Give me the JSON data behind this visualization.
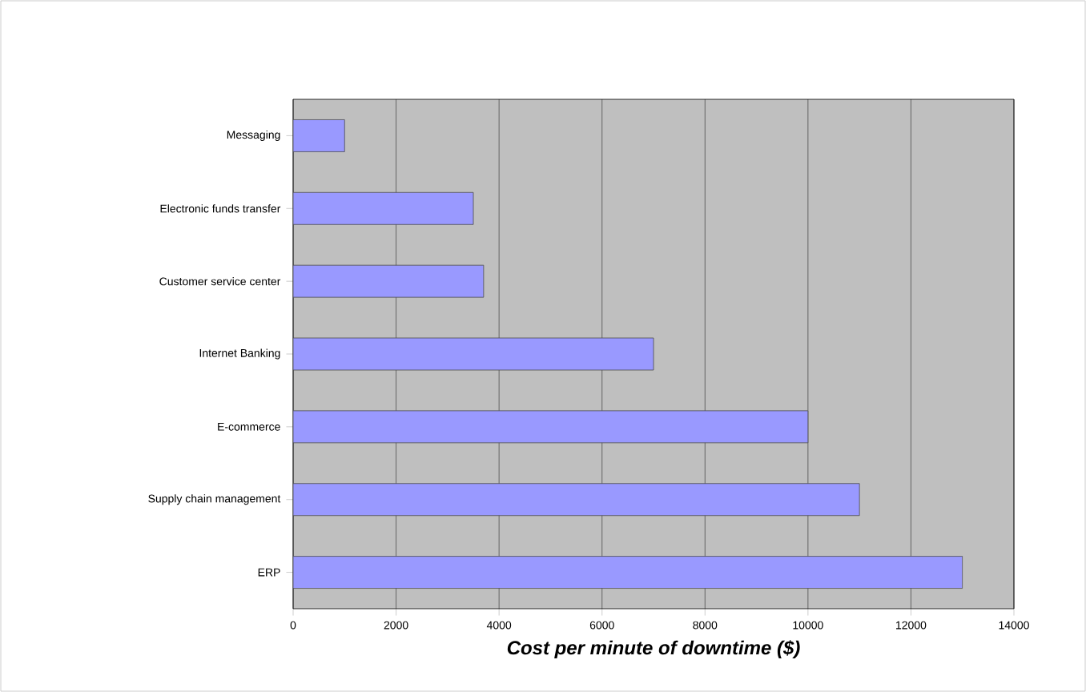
{
  "chart_data": {
    "type": "bar",
    "orientation": "horizontal",
    "xlabel": "Cost per minute of downtime ($)",
    "categories": [
      "Messaging",
      "Electronic funds transfer",
      "Customer service center",
      "Internet Banking",
      "E-commerce",
      "Supply chain management",
      "ERP"
    ],
    "values": [
      1000,
      3500,
      3700,
      7000,
      10000,
      11000,
      13000
    ],
    "color": "#9999ff",
    "xlim": [
      0,
      14000
    ],
    "xticks": [
      0,
      2000,
      4000,
      6000,
      8000,
      10000,
      12000,
      14000
    ],
    "grid": "x"
  }
}
